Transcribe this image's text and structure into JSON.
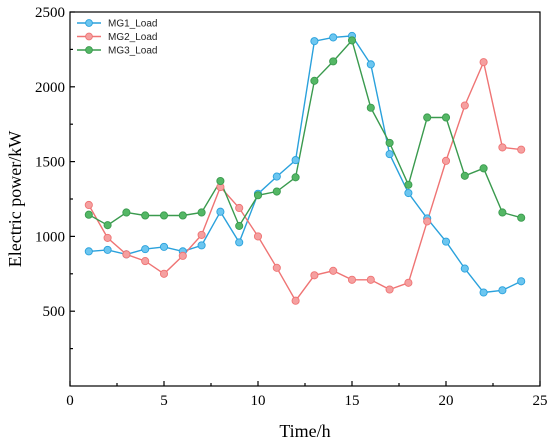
{
  "chart_data": {
    "type": "line",
    "xlabel": "Time/h",
    "ylabel": "Electric power/kW",
    "xlim": [
      0,
      25
    ],
    "ylim": [
      0,
      2500
    ],
    "xticks": [
      "0",
      "5",
      "10",
      "15",
      "20",
      "25"
    ],
    "yticks": [
      "500",
      "1000",
      "1500",
      "2000",
      "2500"
    ],
    "x": [
      1,
      2,
      3,
      4,
      5,
      6,
      7,
      8,
      9,
      10,
      11,
      12,
      13,
      14,
      15,
      16,
      17,
      18,
      19,
      20,
      21,
      22,
      23,
      24
    ],
    "grid": false,
    "legend_position": "top-left",
    "series": [
      {
        "name": "MG1_Load",
        "color": "#2aa1dc",
        "fill": "#6cc6f0",
        "values": [
          900,
          910,
          880,
          915,
          930,
          900,
          940,
          1165,
          960,
          1285,
          1400,
          1510,
          2305,
          2330,
          2340,
          2150,
          1550,
          1290,
          1120,
          965,
          785,
          625,
          640,
          700
        ]
      },
      {
        "name": "MG2_Load",
        "color": "#ef7474",
        "fill": "#f5a0a0",
        "values": [
          1210,
          990,
          880,
          835,
          750,
          870,
          1010,
          1330,
          1190,
          1000,
          790,
          570,
          740,
          770,
          710,
          710,
          645,
          690,
          1100,
          1505,
          1875,
          2165,
          1595,
          1580
        ]
      },
      {
        "name": "MG3_Load",
        "color": "#3a9a4e",
        "fill": "#54b765",
        "values": [
          1145,
          1075,
          1160,
          1140,
          1140,
          1140,
          1160,
          1370,
          1070,
          1275,
          1300,
          1395,
          2040,
          2170,
          2310,
          1860,
          1625,
          1345,
          1795,
          1795,
          1405,
          1455,
          1160,
          1125
        ]
      }
    ]
  }
}
